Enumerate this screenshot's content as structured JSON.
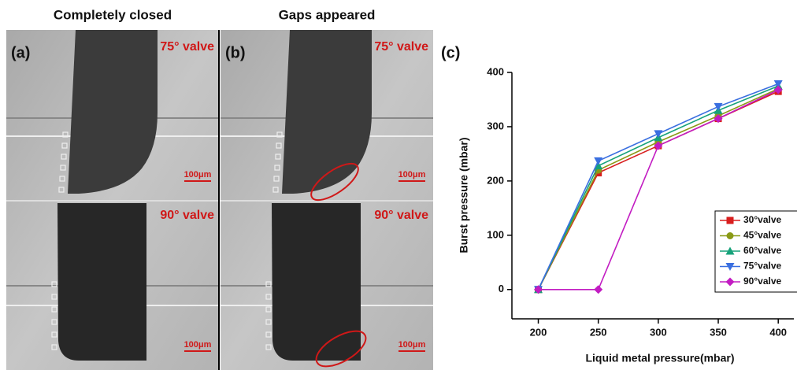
{
  "panels": [
    {
      "heading": "Completely closed",
      "label": "(a)",
      "top_label": "75° valve",
      "bottom_label": "90° valve",
      "scale_bars": [
        "100μm",
        "100μm"
      ]
    },
    {
      "heading": "Gaps appeared",
      "label": "(b)",
      "top_label": "75° valve",
      "bottom_label": "90° valve",
      "scale_bars": [
        "100μm",
        "100μm"
      ]
    }
  ],
  "chart_data": {
    "type": "line",
    "panel_label": "(c)",
    "x_label": "Liquid metal pressure(mbar)",
    "y_label": "Burst pressure (mbar)",
    "x": [
      200,
      250,
      300,
      350,
      400
    ],
    "xlim": [
      178,
      413
    ],
    "xticks": [
      200,
      250,
      300,
      350,
      400
    ],
    "ylim": [
      -54,
      400
    ],
    "yticks": [
      0,
      100,
      200,
      300,
      400
    ],
    "legend": "lower right",
    "series": [
      {
        "name": "30°valve",
        "color": "#d81e1e",
        "marker": "square",
        "values": [
          0,
          215,
          265,
          315,
          365
        ]
      },
      {
        "name": "45°valve",
        "color": "#8a9a16",
        "marker": "circle",
        "values": [
          0,
          220,
          272,
          320,
          370
        ]
      },
      {
        "name": "60°valve",
        "color": "#16a27a",
        "marker": "triangle-up",
        "values": [
          0,
          228,
          280,
          330,
          375
        ]
      },
      {
        "name": "75°valve",
        "color": "#3a6fe0",
        "marker": "triangle-down",
        "values": [
          0,
          237,
          287,
          337,
          379
        ]
      },
      {
        "name": "90°valve",
        "color": "#c21cc2",
        "marker": "diamond",
        "values": [
          0,
          0,
          265,
          315,
          368
        ]
      }
    ]
  }
}
